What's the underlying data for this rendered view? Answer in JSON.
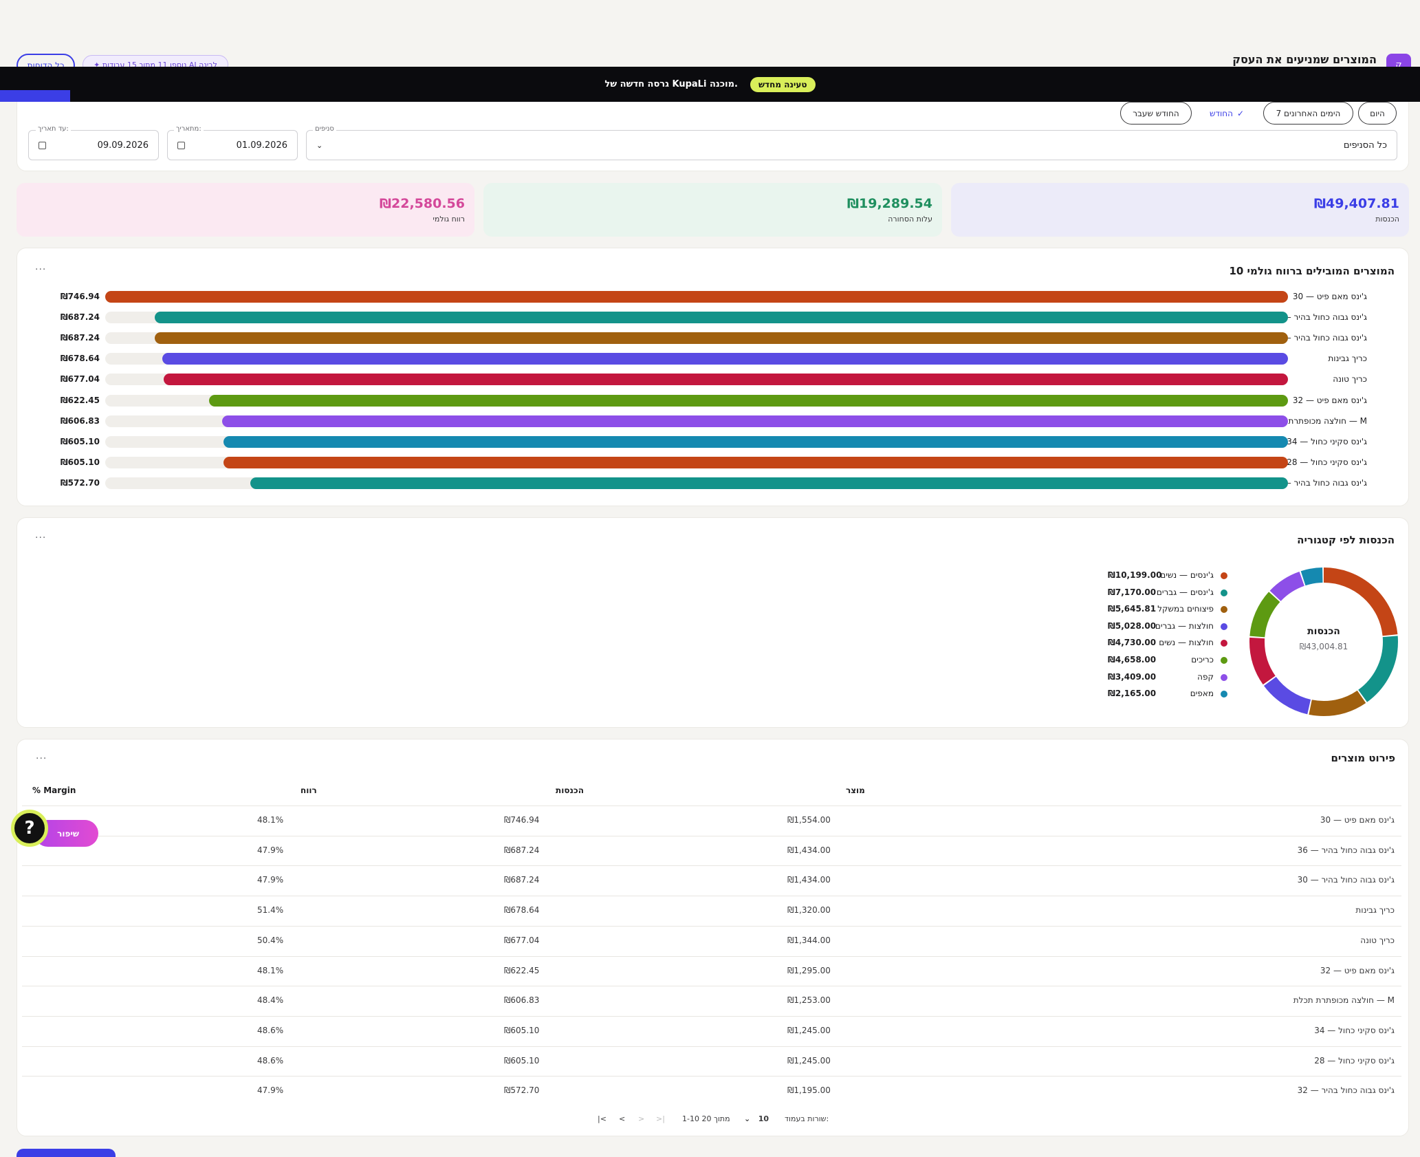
{
  "header": {
    "title": "המוצרים שמניעים את העסק",
    "logo_glyph": "ק",
    "reports_button": "כל הדוחות",
    "ai_chip": "✦ נוספו 11 מתוך 15 עבודות AI לבינה"
  },
  "banner": {
    "text": "גרסה חדשה של KupaLi מוכנה.",
    "reload_label": "טעינה מחדש"
  },
  "filters": {
    "presets": [
      {
        "label": "היום",
        "active": false
      },
      {
        "label": "7 הימים האחרונים",
        "active": false
      },
      {
        "label": "החודש",
        "active": true
      },
      {
        "label": "החודש שעבר",
        "active": false
      }
    ],
    "check_glyph": "✓",
    "branches_label": "סניפים",
    "branches_value": "כל הסניפים",
    "from_label": "מתאריך:",
    "from_value": "01.09.2026",
    "to_label": "עד תאריך:",
    "to_value": "09.09.2026"
  },
  "summary": {
    "revenue": {
      "value": "₪49,407.81",
      "label": "הכנסות",
      "color": "#3b3ee6"
    },
    "cost": {
      "value": "₪19,289.54",
      "label": "עלות הסחורה",
      "color": "#1f8f5f"
    },
    "profit": {
      "value": "₪22,580.56",
      "label": "רווח גולמי",
      "color": "#d4489a"
    }
  },
  "top_products": {
    "title": "10 המוצרים המובילים ברווח גולמי",
    "menu": "···",
    "chart_data": {
      "type": "bar",
      "orientation": "horizontal",
      "title": "10 המוצרים המובילים ברווח גולמי",
      "categories": [
        "ג'ינס מאם פיט — 30",
        "ג'ינס גבוה כחול בהיר — 36",
        "ג'ינס גבוה כחול בהיר — 30",
        "כריך גבינות",
        "כריך טונה",
        "ג'ינס מאם פיט — 32",
        "חולצה מכופתרת תכלת — M",
        "ג'ינס סקיני כחול — 34",
        "ג'ינס סקיני כחול — 28",
        "ג'ינס גבוה כחול בהיר — 32"
      ],
      "values": [
        746.94,
        687.24,
        687.24,
        678.64,
        677.04,
        622.45,
        606.83,
        605.1,
        605.1,
        572.7
      ],
      "value_labels": [
        "₪746.94",
        "₪687.24",
        "₪687.24",
        "₪678.64",
        "₪677.04",
        "₪622.45",
        "₪606.83",
        "₪605.10",
        "₪605.10",
        "₪572.70"
      ],
      "colors": [
        "#c44516",
        "#13938a",
        "#a0600f",
        "#5a4be3",
        "#c3173e",
        "#5d9a12",
        "#8d4fe8",
        "#1589b0",
        "#c44516",
        "#13938a"
      ],
      "xlim": [
        0,
        746.94
      ]
    }
  },
  "category_revenue": {
    "title": "הכנסות לפי קטגוריה",
    "menu": "···",
    "center_label": "הכנסות",
    "center_value": "₪43,004.81",
    "chart_data": {
      "type": "pie",
      "title": "הכנסות לפי קטגוריה",
      "labels": [
        "ג'ינסים — נשים",
        "ג'ינסים — גברים",
        "פיצוחים במשקל",
        "חולצות — גברים",
        "חולצות — נשים",
        "כריכים",
        "קפה",
        "מאפים"
      ],
      "values": [
        10199.0,
        7170.0,
        5645.81,
        5028.0,
        4730.0,
        4658.0,
        3409.0,
        2165.0
      ],
      "value_labels": [
        "₪10,199.00",
        "₪7,170.00",
        "₪5,645.81",
        "₪5,028.00",
        "₪4,730.00",
        "₪4,658.00",
        "₪3,409.00",
        "₪2,165.00"
      ],
      "colors": [
        "#c44516",
        "#13938a",
        "#a0600f",
        "#5a4be3",
        "#c3173e",
        "#5d9a12",
        "#8d4fe8",
        "#1589b0"
      ],
      "total": 43004.81
    }
  },
  "breakdown": {
    "title": "פירוט מוצרים",
    "menu": "···",
    "columns": [
      "מוצר",
      "הכנסות",
      "רווח",
      "% Margin"
    ],
    "rows": [
      [
        "ג'ינס מאם פיט — 30",
        "₪1,554.00",
        "₪746.94",
        "48.1%"
      ],
      [
        "ג'ינס גבוה כחול בהיר — 36",
        "₪1,434.00",
        "₪687.24",
        "47.9%"
      ],
      [
        "ג'ינס גבוה כחול בהיר — 30",
        "₪1,434.00",
        "₪687.24",
        "47.9%"
      ],
      [
        "כריך גבינות",
        "₪1,320.00",
        "₪678.64",
        "51.4%"
      ],
      [
        "כריך טונה",
        "₪1,344.00",
        "₪677.04",
        "50.4%"
      ],
      [
        "ג'ינס מאם פיט — 32",
        "₪1,295.00",
        "₪622.45",
        "48.1%"
      ],
      [
        "חולצה מכופתרת תכלת — M",
        "₪1,253.00",
        "₪606.83",
        "48.4%"
      ],
      [
        "ג'ינס סקיני כחול — 34",
        "₪1,245.00",
        "₪605.10",
        "48.6%"
      ],
      [
        "ג'ינס סקיני כחול — 28",
        "₪1,245.00",
        "₪605.10",
        "48.6%"
      ],
      [
        "ג'ינס גבוה כחול בהיר — 32",
        "₪1,195.00",
        "₪572.70",
        "47.9%"
      ]
    ],
    "pager": {
      "rows_per_page_label": "שורות בעמוד:",
      "rows_per_page": "10",
      "range": "1-10 מתוך 20",
      "first": "|<",
      "prev": "<",
      "next": ">",
      "last": ">|"
    }
  },
  "floating": {
    "help": "?",
    "feedback": "שיפור"
  },
  "icons": {
    "calendar": "calendar-icon",
    "chevron": "chevron-down-icon",
    "check": "check-icon",
    "sparkle": "sparkle-icon"
  }
}
